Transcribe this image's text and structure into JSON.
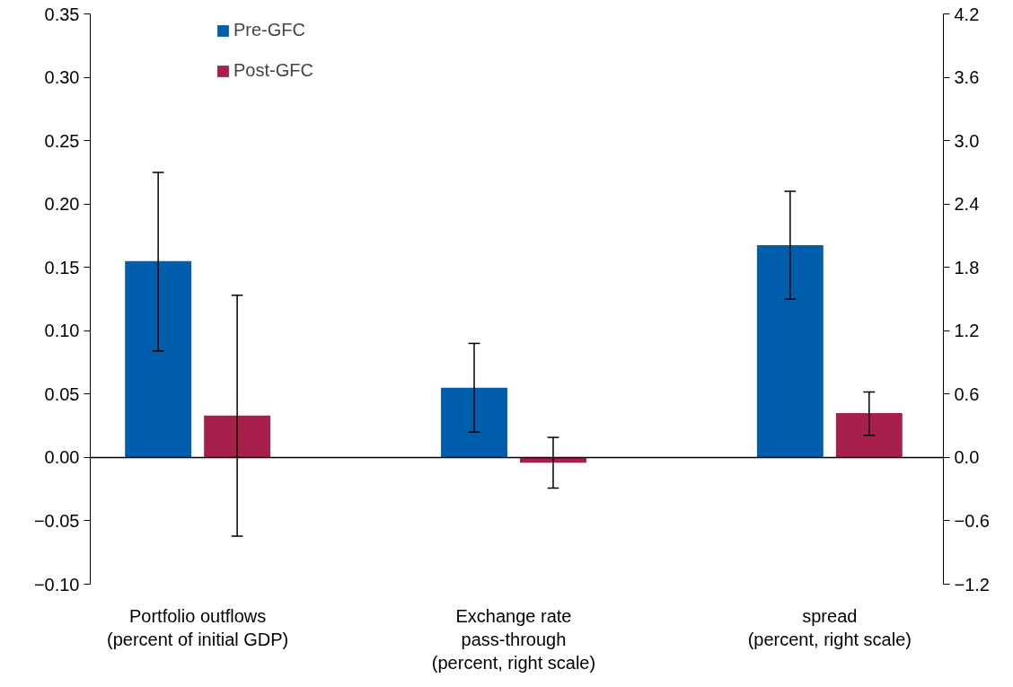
{
  "chart_data": {
    "type": "bar",
    "categories": [
      "Portfolio outflows\n(percent of initial GDP)",
      "Exchange rate\npass-through\n(percent, right scale)",
      "spread\n(percent, right scale)"
    ],
    "series": [
      {
        "name": "Pre-GFC",
        "color": "#005eac",
        "axis": "y",
        "values": [
          0.155,
          null,
          null
        ],
        "errors": [
          [
            0.084,
            0.225
          ],
          null,
          null
        ]
      },
      {
        "name": "Post-GFC",
        "color": "#a91f4b",
        "axis": "y",
        "values": [
          0.033,
          null,
          null
        ],
        "errors": [
          [
            -0.062,
            0.128
          ],
          null,
          null
        ]
      },
      {
        "color": "#005eac",
        "axis": "y2",
        "values": [
          null,
          0.66,
          2.01
        ],
        "errors": [
          null,
          [
            0.24,
            1.08
          ],
          [
            1.5,
            2.52
          ]
        ]
      },
      {
        "color": "#a91f4b",
        "axis": "y2",
        "values": [
          null,
          -0.05,
          0.42
        ],
        "errors": [
          null,
          [
            -0.29,
            0.19
          ],
          [
            0.21,
            0.62
          ]
        ]
      }
    ],
    "ylim": [
      -0.1,
      0.35
    ],
    "yticks": [
      {
        "value": -0.1,
        "label": "−0.10"
      },
      {
        "value": -0.05,
        "label": "−0.05"
      },
      {
        "value": 0,
        "label": "0.00"
      },
      {
        "value": 0.05,
        "label": "0.05"
      },
      {
        "value": 0.1,
        "label": "0.10"
      },
      {
        "value": 0.15,
        "label": "0.15"
      },
      {
        "value": 0.2,
        "label": "0.20"
      },
      {
        "value": 0.25,
        "label": "0.25"
      },
      {
        "value": 0.3,
        "label": "0.30"
      },
      {
        "value": 0.35,
        "label": "0.35"
      }
    ],
    "y2lim": [
      -1.2,
      4.2
    ],
    "y2ticks": [
      {
        "value": -1.2,
        "label": "−1.2"
      },
      {
        "value": -0.6,
        "label": "−0.6"
      },
      {
        "value": 0,
        "label": "0.0"
      },
      {
        "value": 0.6,
        "label": "0.6"
      },
      {
        "value": 1.2,
        "label": "1.2"
      },
      {
        "value": 1.8,
        "label": "1.8"
      },
      {
        "value": 2.4,
        "label": "2.4"
      },
      {
        "value": 3.0,
        "label": "3.0"
      },
      {
        "value": 3.6,
        "label": "3.6"
      },
      {
        "value": 4.2,
        "label": "4.2"
      }
    ],
    "legend": "top left"
  }
}
